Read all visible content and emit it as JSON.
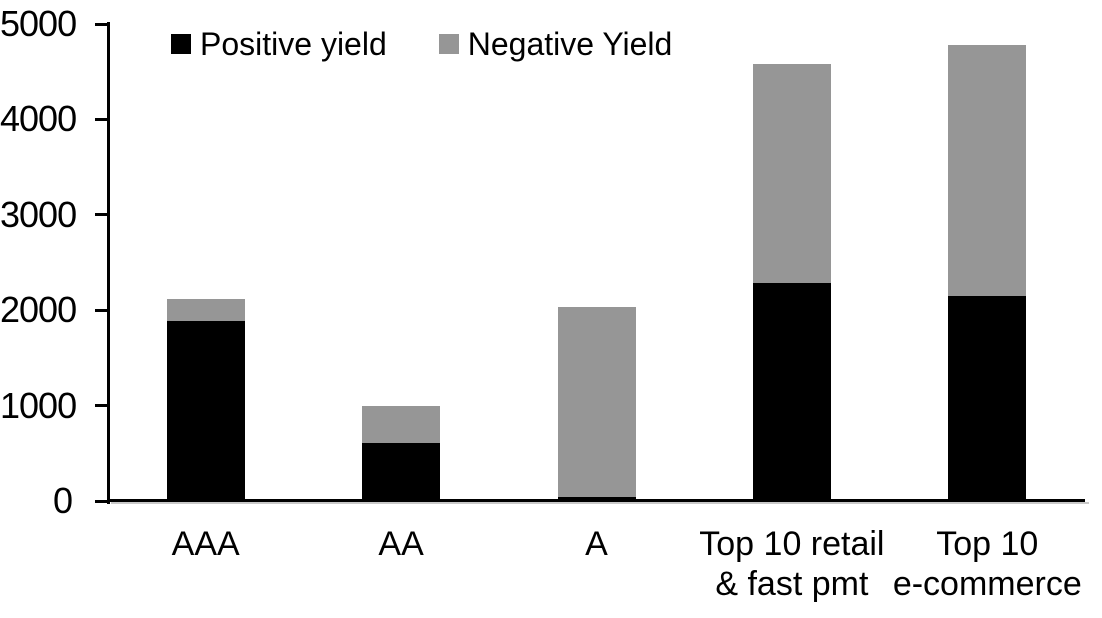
{
  "chart_data": {
    "type": "bar",
    "stacked": true,
    "title": "",
    "xlabel": "",
    "ylabel": "",
    "categories": [
      "AAA",
      "AA",
      "A",
      "Top 10 retail\n& fast pmt",
      "Top 10\ne-commerce"
    ],
    "series": [
      {
        "name": "Positive yield",
        "color": "#000000",
        "values": [
          1890,
          610,
          40,
          2290,
          2150
        ]
      },
      {
        "name": "Negative Yield",
        "color": "#969696",
        "values": [
          230,
          390,
          1990,
          2290,
          2630
        ]
      }
    ],
    "totals": [
      2120,
      1000,
      2030,
      4580,
      4780
    ],
    "ylim": [
      0,
      5000
    ],
    "yticks": [
      0,
      1000,
      2000,
      3000,
      4000,
      5000
    ],
    "grid": false,
    "legend_position": "top-inside",
    "axis_color": "#000000",
    "background_color": "#ffffff"
  }
}
